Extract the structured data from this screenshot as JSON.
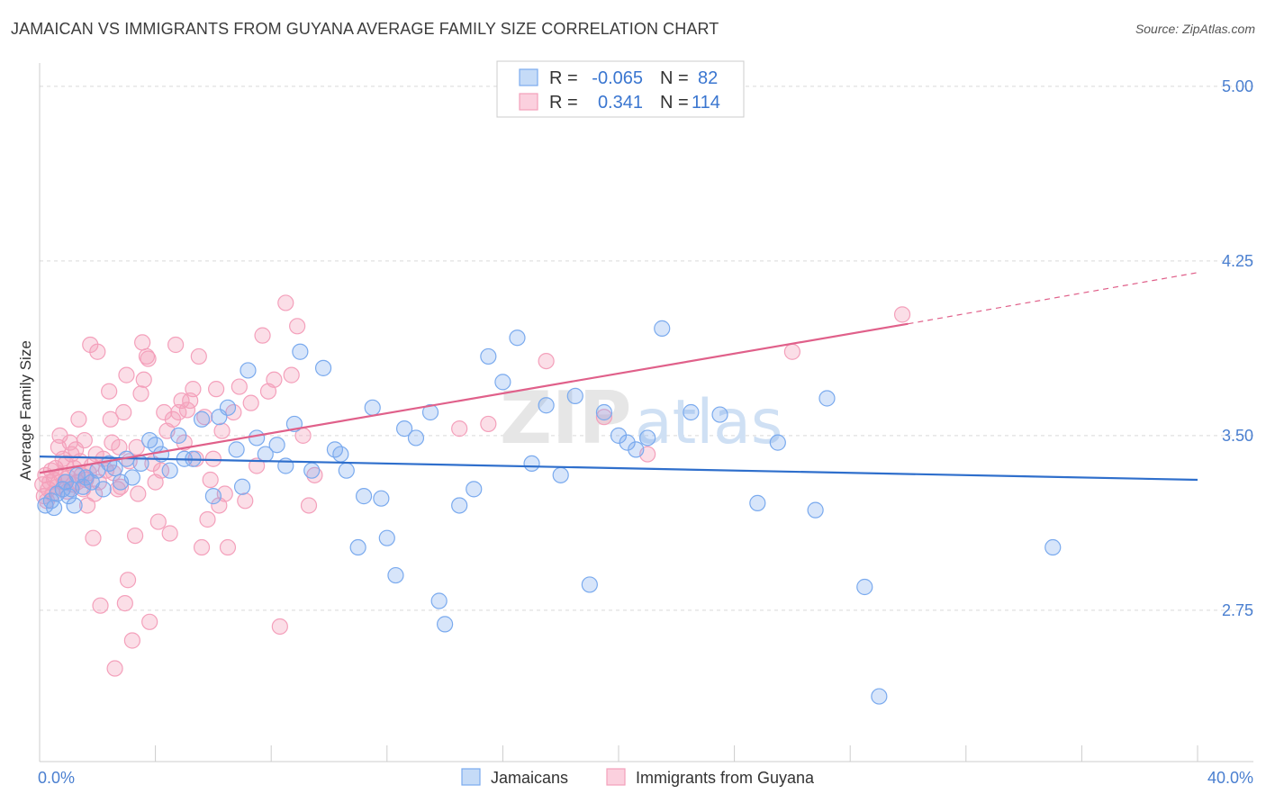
{
  "header": {
    "title": "JAMAICAN VS IMMIGRANTS FROM GUYANA AVERAGE FAMILY SIZE CORRELATION CHART",
    "source": "Source: ZipAtlas.com"
  },
  "watermark": {
    "zip": "ZIP",
    "atlas": "atlas"
  },
  "legend": {
    "rows": [
      {
        "r_label": "R =",
        "r_value": "-0.065",
        "n_label": "N =",
        "n_value": "82"
      },
      {
        "r_label": "R =",
        "r_value": "0.341",
        "n_label": "N =",
        "n_value": "114"
      }
    ]
  },
  "chart_data": {
    "type": "scatter",
    "title": "JAMAICAN VS IMMIGRANTS FROM GUYANA AVERAGE FAMILY SIZE CORRELATION CHART",
    "xlabel": "",
    "ylabel": "Average Family Size",
    "xlim": [
      0,
      40
    ],
    "ylim": [
      2.1,
      5.1
    ],
    "x_tick_labels": [
      "0.0%",
      "40.0%"
    ],
    "y_ticks": [
      2.75,
      3.5,
      4.25,
      5.0
    ],
    "y_tick_labels": [
      "2.75",
      "3.50",
      "4.25",
      "5.00"
    ],
    "grid": true,
    "legend_position": "top-center",
    "colors": {
      "jamaicans": "#7aaaee",
      "guyana": "#f4a0bb",
      "jamaicans_line": "#2f6fcc",
      "guyana_line": "#e0608a"
    },
    "series": [
      {
        "name": "Jamaicans",
        "r": -0.065,
        "n": 82,
        "trend": {
          "x": [
            0,
            40
          ],
          "y": [
            3.41,
            3.31
          ]
        },
        "points": [
          [
            0.2,
            3.2
          ],
          [
            0.4,
            3.22
          ],
          [
            0.5,
            3.19
          ],
          [
            0.6,
            3.25
          ],
          [
            0.8,
            3.27
          ],
          [
            0.9,
            3.3
          ],
          [
            1.0,
            3.24
          ],
          [
            1.1,
            3.27
          ],
          [
            1.2,
            3.2
          ],
          [
            1.3,
            3.33
          ],
          [
            1.5,
            3.28
          ],
          [
            1.6,
            3.32
          ],
          [
            1.8,
            3.3
          ],
          [
            2.0,
            3.35
          ],
          [
            2.2,
            3.27
          ],
          [
            2.4,
            3.38
          ],
          [
            2.6,
            3.36
          ],
          [
            2.8,
            3.3
          ],
          [
            3.0,
            3.4
          ],
          [
            3.2,
            3.32
          ],
          [
            3.5,
            3.38
          ],
          [
            3.8,
            3.48
          ],
          [
            4.0,
            3.46
          ],
          [
            4.2,
            3.42
          ],
          [
            4.5,
            3.35
          ],
          [
            4.8,
            3.5
          ],
          [
            5.0,
            3.4
          ],
          [
            5.3,
            3.4
          ],
          [
            5.6,
            3.57
          ],
          [
            6.0,
            3.24
          ],
          [
            6.2,
            3.58
          ],
          [
            6.5,
            3.62
          ],
          [
            6.8,
            3.44
          ],
          [
            7.0,
            3.28
          ],
          [
            7.2,
            3.78
          ],
          [
            7.5,
            3.49
          ],
          [
            7.8,
            3.42
          ],
          [
            8.2,
            3.46
          ],
          [
            8.5,
            3.37
          ],
          [
            8.8,
            3.55
          ],
          [
            9.0,
            3.86
          ],
          [
            9.4,
            3.35
          ],
          [
            9.8,
            3.79
          ],
          [
            10.2,
            3.44
          ],
          [
            10.4,
            3.42
          ],
          [
            10.6,
            3.35
          ],
          [
            11.0,
            3.02
          ],
          [
            11.2,
            3.24
          ],
          [
            11.5,
            3.62
          ],
          [
            11.8,
            3.23
          ],
          [
            12.0,
            3.06
          ],
          [
            12.3,
            2.9
          ],
          [
            12.6,
            3.53
          ],
          [
            13.0,
            3.49
          ],
          [
            13.5,
            3.6
          ],
          [
            13.8,
            2.79
          ],
          [
            14.0,
            2.69
          ],
          [
            14.5,
            3.2
          ],
          [
            15.0,
            3.27
          ],
          [
            15.5,
            3.84
          ],
          [
            16.0,
            3.73
          ],
          [
            16.5,
            3.92
          ],
          [
            17.0,
            3.38
          ],
          [
            17.5,
            3.63
          ],
          [
            18.0,
            3.33
          ],
          [
            18.5,
            3.67
          ],
          [
            19.0,
            2.86
          ],
          [
            19.5,
            3.6
          ],
          [
            20.0,
            3.5
          ],
          [
            20.3,
            3.47
          ],
          [
            20.6,
            3.44
          ],
          [
            21.0,
            3.49
          ],
          [
            21.5,
            3.96
          ],
          [
            22.5,
            3.6
          ],
          [
            23.5,
            3.59
          ],
          [
            24.8,
            3.21
          ],
          [
            25.5,
            3.47
          ],
          [
            26.8,
            3.18
          ],
          [
            27.2,
            3.66
          ],
          [
            28.5,
            2.85
          ],
          [
            29.0,
            2.38
          ],
          [
            35.0,
            3.02
          ]
        ]
      },
      {
        "name": "Immigrants from Guyana",
        "r": 0.341,
        "n": 114,
        "trend": {
          "x": [
            0,
            30
          ],
          "y": [
            3.34,
            3.98
          ],
          "dashed_to": {
            "x": 40,
            "y": 4.2
          }
        },
        "points": [
          [
            0.1,
            3.29
          ],
          [
            0.15,
            3.24
          ],
          [
            0.2,
            3.33
          ],
          [
            0.25,
            3.22
          ],
          [
            0.3,
            3.27
          ],
          [
            0.35,
            3.3
          ],
          [
            0.4,
            3.35
          ],
          [
            0.45,
            3.25
          ],
          [
            0.5,
            3.31
          ],
          [
            0.55,
            3.36
          ],
          [
            0.6,
            3.28
          ],
          [
            0.65,
            3.45
          ],
          [
            0.7,
            3.5
          ],
          [
            0.75,
            3.33
          ],
          [
            0.8,
            3.4
          ],
          [
            0.85,
            3.3
          ],
          [
            0.9,
            3.38
          ],
          [
            0.95,
            3.26
          ],
          [
            1.0,
            3.32
          ],
          [
            1.05,
            3.47
          ],
          [
            1.1,
            3.42
          ],
          [
            1.15,
            3.29
          ],
          [
            1.2,
            3.36
          ],
          [
            1.25,
            3.44
          ],
          [
            1.3,
            3.3
          ],
          [
            1.35,
            3.57
          ],
          [
            1.4,
            3.39
          ],
          [
            1.45,
            3.33
          ],
          [
            1.5,
            3.27
          ],
          [
            1.55,
            3.48
          ],
          [
            1.6,
            3.31
          ],
          [
            1.65,
            3.2
          ],
          [
            1.7,
            3.34
          ],
          [
            1.75,
            3.89
          ],
          [
            1.8,
            3.37
          ],
          [
            1.85,
            3.06
          ],
          [
            1.9,
            3.25
          ],
          [
            1.95,
            3.42
          ],
          [
            2.0,
            3.86
          ],
          [
            2.05,
            3.3
          ],
          [
            2.1,
            2.77
          ],
          [
            2.2,
            3.4
          ],
          [
            2.3,
            3.35
          ],
          [
            2.4,
            3.69
          ],
          [
            2.45,
            3.57
          ],
          [
            2.5,
            3.47
          ],
          [
            2.55,
            3.34
          ],
          [
            2.6,
            2.5
          ],
          [
            2.7,
            3.27
          ],
          [
            2.75,
            3.45
          ],
          [
            2.8,
            3.28
          ],
          [
            2.9,
            3.6
          ],
          [
            2.95,
            2.78
          ],
          [
            3.0,
            3.76
          ],
          [
            3.05,
            2.88
          ],
          [
            3.1,
            3.39
          ],
          [
            3.2,
            2.62
          ],
          [
            3.3,
            3.07
          ],
          [
            3.35,
            3.45
          ],
          [
            3.4,
            3.25
          ],
          [
            3.5,
            3.68
          ],
          [
            3.55,
            3.9
          ],
          [
            3.6,
            3.74
          ],
          [
            3.7,
            3.84
          ],
          [
            3.75,
            3.83
          ],
          [
            3.8,
            2.7
          ],
          [
            3.9,
            3.38
          ],
          [
            4.0,
            3.3
          ],
          [
            4.1,
            3.13
          ],
          [
            4.2,
            3.35
          ],
          [
            4.3,
            3.6
          ],
          [
            4.4,
            3.52
          ],
          [
            4.5,
            3.08
          ],
          [
            4.6,
            3.57
          ],
          [
            4.7,
            3.89
          ],
          [
            4.8,
            3.6
          ],
          [
            4.9,
            3.65
          ],
          [
            5.0,
            3.47
          ],
          [
            5.1,
            3.61
          ],
          [
            5.2,
            3.65
          ],
          [
            5.3,
            3.7
          ],
          [
            5.4,
            3.4
          ],
          [
            5.5,
            3.84
          ],
          [
            5.6,
            3.02
          ],
          [
            5.7,
            3.58
          ],
          [
            5.8,
            3.14
          ],
          [
            5.9,
            3.31
          ],
          [
            6.0,
            3.4
          ],
          [
            6.1,
            3.7
          ],
          [
            6.2,
            3.2
          ],
          [
            6.3,
            3.52
          ],
          [
            6.4,
            3.25
          ],
          [
            6.5,
            3.02
          ],
          [
            6.7,
            3.6
          ],
          [
            6.9,
            3.71
          ],
          [
            7.1,
            3.22
          ],
          [
            7.3,
            3.64
          ],
          [
            7.5,
            3.37
          ],
          [
            7.7,
            3.93
          ],
          [
            7.9,
            3.69
          ],
          [
            8.1,
            3.74
          ],
          [
            8.3,
            2.68
          ],
          [
            8.5,
            4.07
          ],
          [
            8.7,
            3.76
          ],
          [
            8.9,
            3.97
          ],
          [
            9.1,
            3.5
          ],
          [
            9.3,
            3.2
          ],
          [
            9.5,
            3.33
          ],
          [
            14.5,
            3.53
          ],
          [
            15.5,
            3.55
          ],
          [
            17.5,
            3.82
          ],
          [
            19.5,
            3.58
          ],
          [
            21.0,
            3.42
          ],
          [
            26.0,
            3.86
          ],
          [
            29.8,
            4.02
          ]
        ]
      }
    ]
  },
  "bottom_legend": {
    "items": [
      {
        "label": "Jamaicans"
      },
      {
        "label": "Immigrants from Guyana"
      }
    ]
  }
}
